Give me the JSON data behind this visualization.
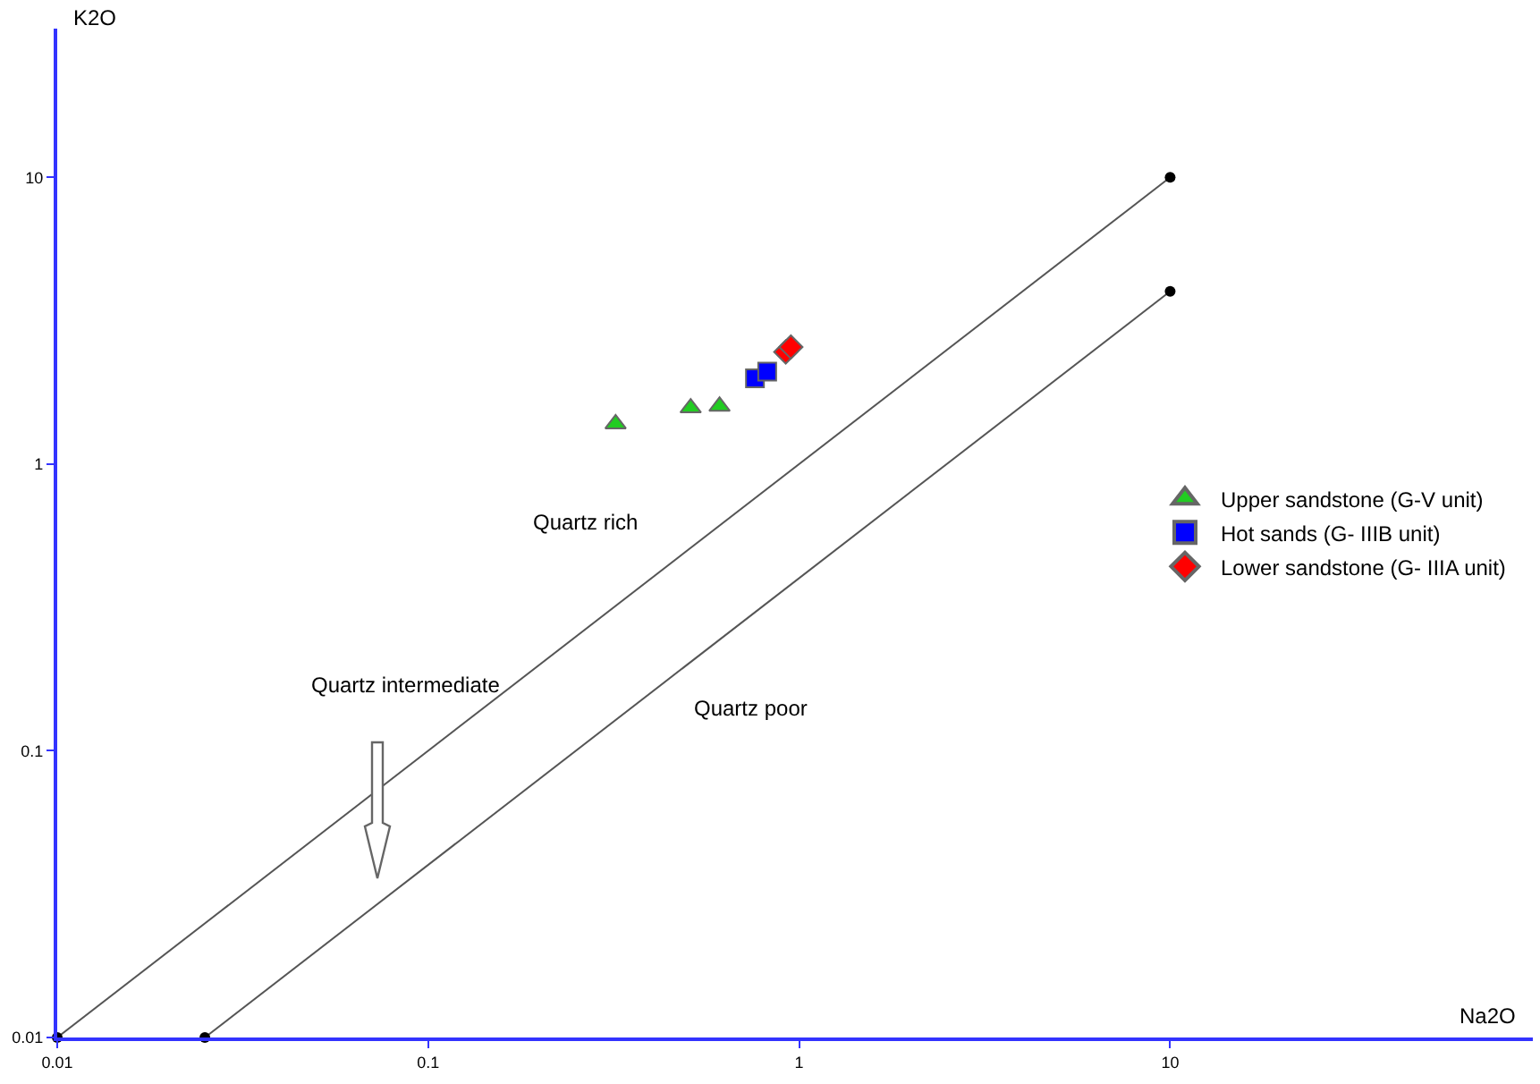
{
  "chart_data": {
    "type": "scatter",
    "xlabel": "Na2O",
    "ylabel": "K2O",
    "log": "xy",
    "xlim": [
      0.01,
      95
    ],
    "ylim": [
      0.01,
      33
    ],
    "xticks": [
      0.01,
      0.1,
      1,
      10
    ],
    "yticks": [
      0.01,
      0.1,
      1,
      10
    ],
    "grid": false,
    "legend": "right",
    "series": [
      {
        "name": "Upper sandstone (G-V unit)",
        "color": "#22cc22",
        "marker": "triangle",
        "x": [
          0.32,
          0.51,
          0.61
        ],
        "values": [
          1.38,
          1.57,
          1.59
        ]
      },
      {
        "name": "Hot sands (G- IIIB unit)",
        "color": "#0000ff",
        "marker": "square",
        "x": [
          0.76,
          0.82
        ],
        "values": [
          1.99,
          2.1
        ]
      },
      {
        "name": "Lower sandstone (G- IIIA unit)",
        "color": "#ff0000",
        "marker": "diamond",
        "x": [
          0.92,
          0.95
        ],
        "values": [
          2.46,
          2.56
        ]
      },
      {
        "type": "line",
        "color": "#555555",
        "marker": "circle",
        "x": [
          0.01,
          10
        ],
        "values": [
          0.01,
          10
        ]
      },
      {
        "type": "line",
        "color": "#555555",
        "marker": "circle",
        "x": [
          0.025,
          10
        ],
        "values": [
          0.01,
          4
        ]
      }
    ],
    "annotations": [
      "Quartz rich",
      "Quartz intermediate",
      "Quartz poor"
    ]
  }
}
